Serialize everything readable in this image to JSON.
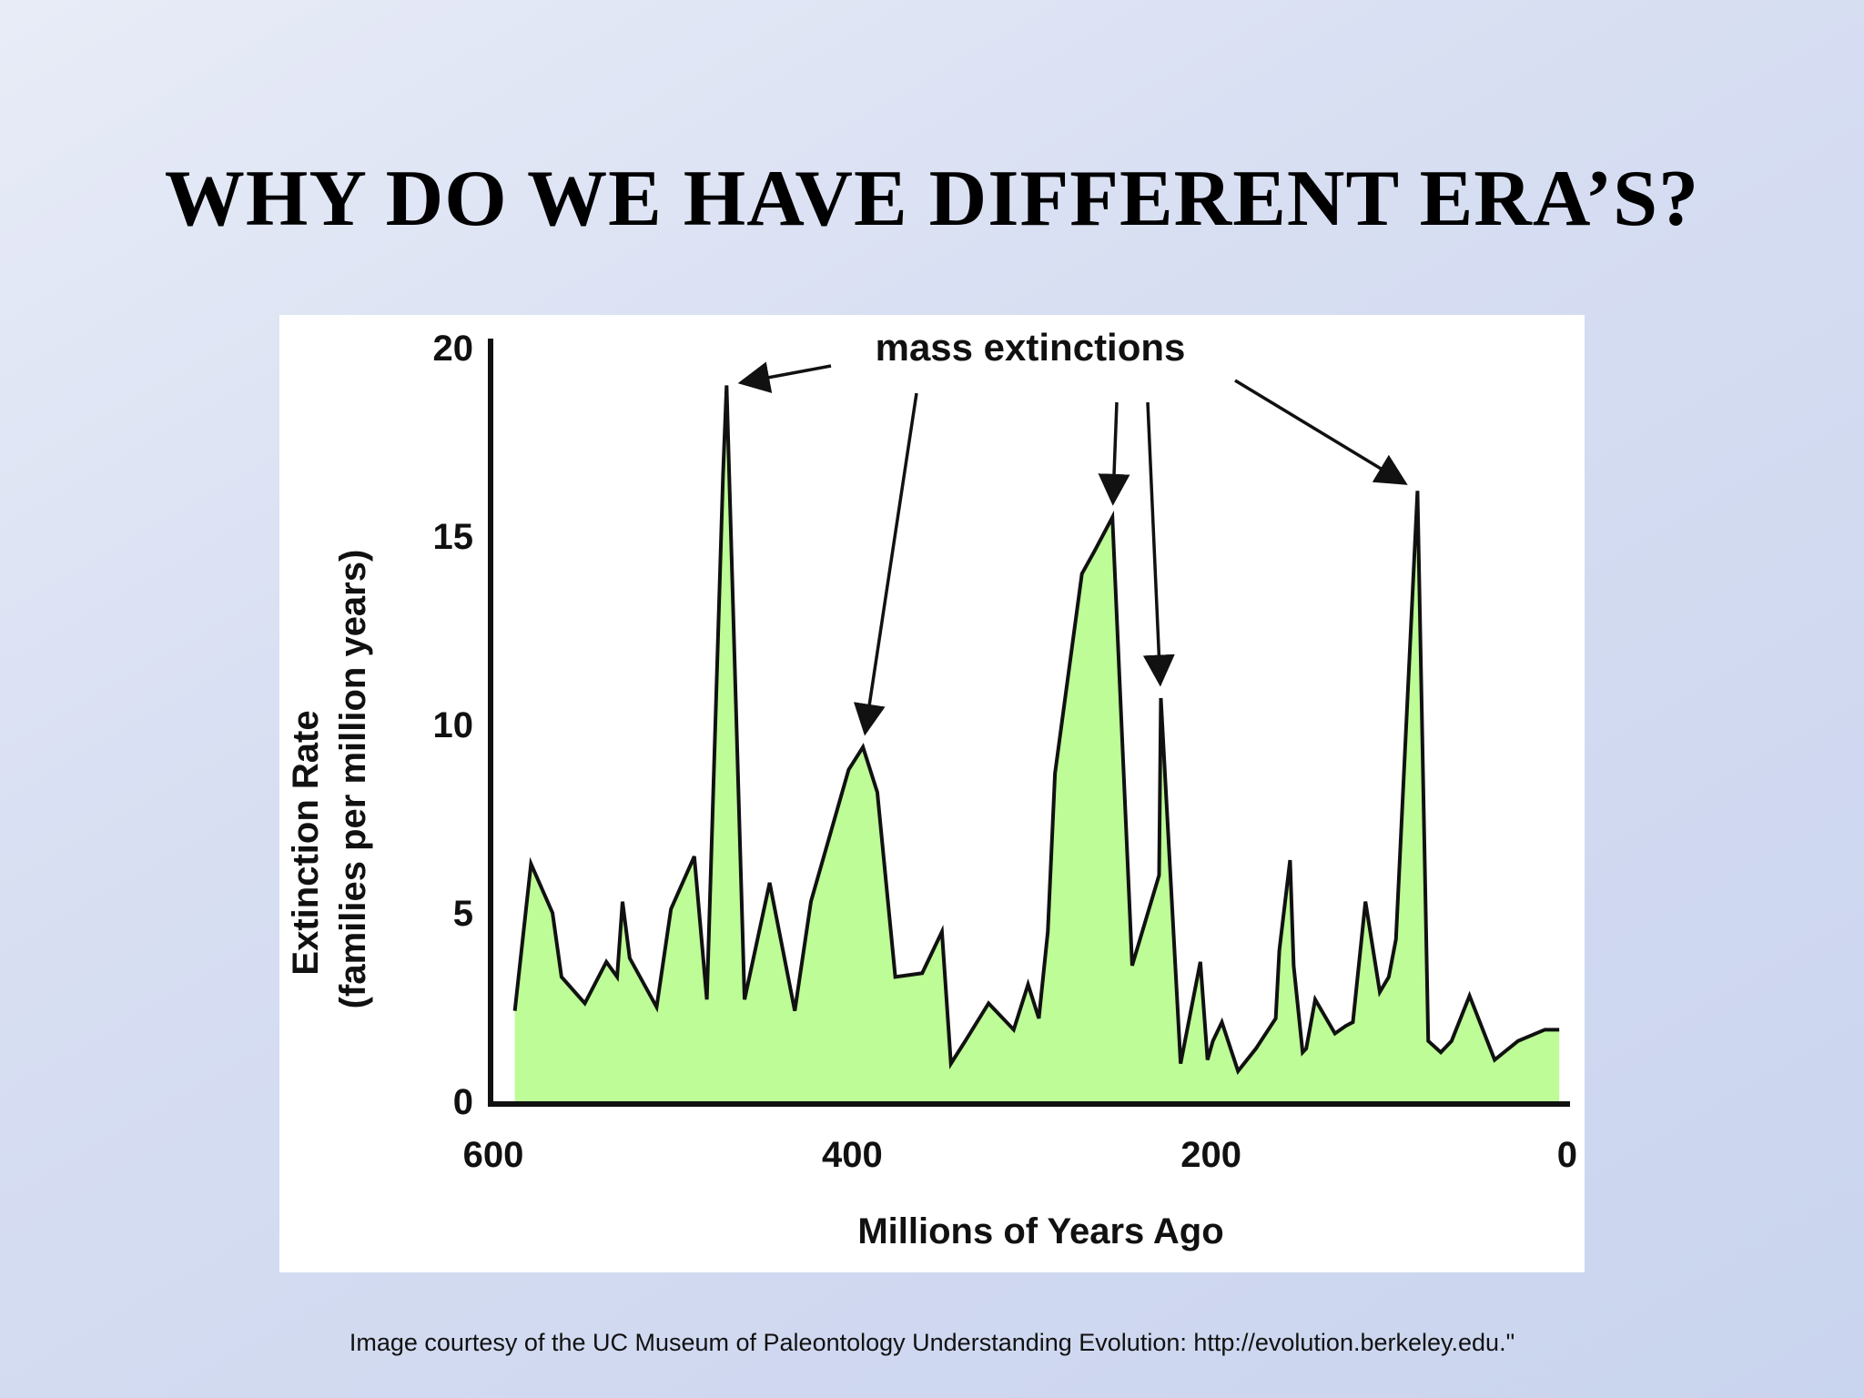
{
  "slide": {
    "title": "WHY DO WE HAVE DIFFERENT ERA’S?",
    "credit": "Image courtesy of the UC Museum of Paleontology Understanding Evolution: http://evolution.berkeley.edu.\""
  },
  "colors": {
    "fill": "#bdfc96",
    "line": "#111111",
    "background": "#ffffff"
  },
  "chart_data": {
    "type": "area",
    "xlabel": "Millions of Years Ago",
    "ylabel_line1": "Extinction Rate",
    "ylabel_line2": "(families per million years)",
    "xlim": [
      600,
      0
    ],
    "ylim": [
      0,
      20
    ],
    "xticks": [
      600,
      400,
      200,
      0
    ],
    "yticks": [
      0,
      5,
      10,
      15,
      20
    ],
    "grid": false,
    "annotation": "mass extinctions",
    "mass_extinctions": [
      {
        "x": 470,
        "y": 19
      },
      {
        "x": 394,
        "y": 9.4
      },
      {
        "x": 255,
        "y": 15.5
      },
      {
        "x": 228,
        "y": 10.7
      },
      {
        "x": 85,
        "y": 16.2
      }
    ],
    "series": [
      {
        "x": [
          588,
          579,
          567,
          562,
          549,
          537,
          531,
          528,
          524,
          509,
          501,
          488,
          481,
          472,
          470,
          460,
          446,
          432,
          423,
          402,
          394,
          386,
          376,
          361,
          350,
          345,
          337,
          324,
          310,
          302,
          296,
          291,
          287,
          272,
          265,
          255,
          244,
          229,
          228,
          217,
          206,
          202,
          199,
          194,
          185,
          175,
          164,
          162,
          156,
          154,
          149,
          147,
          142,
          131,
          125,
          121,
          114,
          106,
          101,
          97,
          85,
          79,
          72,
          66,
          56,
          42,
          29,
          14,
          6
        ],
        "y": [
          2.4,
          6.3,
          5.0,
          3.3,
          2.6,
          3.7,
          3.3,
          5.3,
          3.8,
          2.5,
          5.1,
          6.5,
          2.7,
          16.6,
          19.0,
          2.7,
          5.8,
          2.4,
          5.3,
          8.8,
          9.4,
          8.2,
          3.3,
          3.4,
          4.5,
          1.0,
          1.6,
          2.6,
          1.9,
          3.1,
          2.2,
          4.5,
          8.7,
          14.0,
          14.6,
          15.5,
          3.6,
          6.0,
          10.7,
          1.0,
          3.7,
          1.1,
          1.6,
          2.1,
          0.8,
          1.4,
          2.2,
          4.0,
          6.4,
          3.6,
          1.3,
          1.4,
          2.7,
          1.8,
          2.0,
          2.1,
          5.3,
          2.9,
          3.3,
          4.3,
          16.2,
          1.6,
          1.3,
          1.6,
          2.8,
          1.1,
          1.6,
          1.9,
          1.9
        ]
      }
    ]
  }
}
